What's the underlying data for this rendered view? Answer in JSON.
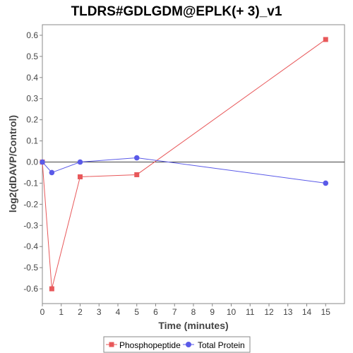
{
  "chart_data": {
    "type": "line",
    "title": "TLDRS#GDLGDM@EPLK(+ 3)_v1",
    "xlabel": "Time (minutes)",
    "ylabel": "log2(dDAVP/Control)",
    "xlim": [
      0,
      16
    ],
    "ylim": [
      -0.67,
      0.65
    ],
    "xticks": [
      0,
      1,
      2,
      3,
      4,
      5,
      6,
      7,
      8,
      9,
      10,
      11,
      12,
      13,
      14,
      15
    ],
    "yticks": [
      0.6,
      0.5,
      0.4,
      0.3,
      0.2,
      0.1,
      0.0,
      -0.1,
      -0.2,
      -0.3,
      -0.4,
      -0.5,
      -0.6
    ],
    "ytick_labels": [
      "0.6",
      "0.5",
      "0.4",
      "0.3",
      "0.2",
      "0.1",
      "0.0",
      "-0.1",
      "-0.2",
      "-0.3",
      "-0.4",
      "-0.5",
      "-0.6"
    ],
    "zero_line": true,
    "grid": false,
    "legend_position": "bottom",
    "series": [
      {
        "name": "Phosphopeptide",
        "color": "#e8585a",
        "marker": "square",
        "x": [
          0,
          0.5,
          2,
          5,
          15
        ],
        "y": [
          0.0,
          -0.6,
          -0.07,
          -0.06,
          0.58
        ]
      },
      {
        "name": "Total Protein",
        "color": "#5a5ae8",
        "marker": "circle",
        "x": [
          0,
          0.5,
          2,
          5,
          15
        ],
        "y": [
          0.0,
          -0.05,
          0.0,
          0.02,
          -0.1
        ]
      }
    ]
  }
}
